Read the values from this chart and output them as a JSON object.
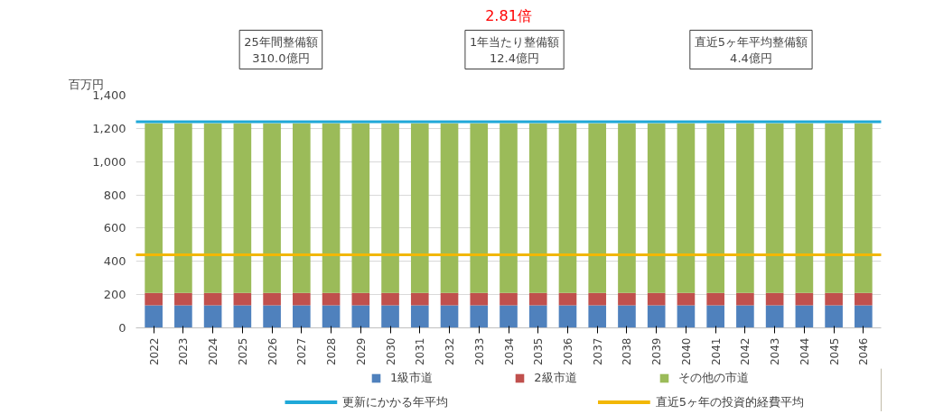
{
  "chart_data": {
    "type": "bar",
    "stacked": true,
    "ylabel": "百万円",
    "categories": [
      "2022",
      "2023",
      "2024",
      "2025",
      "2026",
      "2027",
      "2028",
      "2029",
      "2030",
      "2031",
      "2032",
      "2033",
      "2034",
      "2035",
      "2036",
      "2037",
      "2038",
      "2039",
      "2040",
      "2041",
      "2042",
      "2043",
      "2044",
      "2045",
      "2046"
    ],
    "series": [
      {
        "name": "1級市道",
        "color": "#4f81bd",
        "values": [
          135,
          135,
          135,
          135,
          135,
          135,
          135,
          135,
          135,
          135,
          135,
          135,
          135,
          135,
          135,
          135,
          135,
          135,
          135,
          135,
          135,
          135,
          135,
          135,
          135
        ]
      },
      {
        "name": "2級市道",
        "color": "#c0504d",
        "values": [
          75,
          75,
          75,
          75,
          75,
          75,
          75,
          75,
          75,
          75,
          75,
          75,
          75,
          75,
          75,
          75,
          75,
          75,
          75,
          75,
          75,
          75,
          75,
          75,
          75
        ]
      },
      {
        "name": "その他の市道",
        "color": "#9bbb59",
        "values": [
          1020,
          1020,
          1020,
          1020,
          1020,
          1020,
          1020,
          1020,
          1020,
          1020,
          1020,
          1020,
          1020,
          1020,
          1020,
          1020,
          1020,
          1020,
          1020,
          1020,
          1020,
          1020,
          1020,
          1020,
          1020
        ]
      }
    ],
    "ylim": [
      0,
      1400
    ],
    "yticks": [
      {
        "value": 0,
        "label": "0"
      },
      {
        "value": 200,
        "label": "200"
      },
      {
        "value": 400,
        "label": "400"
      },
      {
        "value": 600,
        "label": "600"
      },
      {
        "value": 800,
        "label": "800"
      },
      {
        "value": 1000,
        "label": "1,000"
      },
      {
        "value": 1200,
        "label": "1,200"
      },
      {
        "value": 1400,
        "label": "1,400"
      }
    ],
    "grid": "y",
    "legend": "bottom",
    "ref_lines": [
      {
        "axis": "y",
        "value": 1240,
        "label": "更新にかかる年平均",
        "color": "#1fa8d8"
      },
      {
        "axis": "y",
        "value": 440,
        "label": "直近5ヶ年の投資的経費平均",
        "color": "#f2b705"
      }
    ],
    "annotations": [
      "25年間整備額\n310.0億円",
      "1年当たり整備額\n12.4億円",
      "直近5ヶ年平均整備額\n4.4億円",
      "2.81倍"
    ]
  }
}
